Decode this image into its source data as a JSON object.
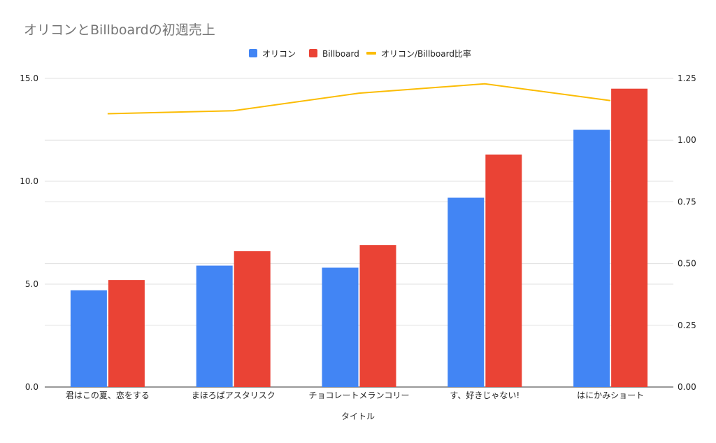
{
  "chart_data": {
    "type": "bar",
    "title": "オリコンとBillboardの初週売上",
    "xlabel": "タイトル",
    "categories": [
      "君はこの夏、恋をする",
      "まほろばアスタリスク",
      "チョコレートメランコリー",
      "す、好きじゃない!",
      "はにかみショート"
    ],
    "series": [
      {
        "name": "オリコン",
        "type": "bar",
        "axis": "left",
        "color": "#4285f4",
        "values": [
          4.7,
          5.9,
          5.8,
          9.2,
          12.5
        ]
      },
      {
        "name": "Billboard",
        "type": "bar",
        "axis": "left",
        "color": "#ea4335",
        "values": [
          5.2,
          6.6,
          6.9,
          11.3,
          14.5
        ]
      },
      {
        "name": "オリコン/Billboard比率",
        "type": "line",
        "axis": "right",
        "color": "#fbbc04",
        "values": [
          1.107,
          1.119,
          1.19,
          1.228,
          1.16
        ]
      }
    ],
    "left_axis": {
      "min": 0,
      "max": 15,
      "ticks": [
        "0.0",
        "5.0",
        "10.0",
        "15.0"
      ],
      "tick_values": [
        0,
        5,
        10,
        15
      ]
    },
    "right_axis": {
      "min": 0,
      "max": 1.25,
      "ticks": [
        "0.00",
        "0.25",
        "0.50",
        "0.75",
        "1.00",
        "1.25"
      ],
      "tick_values": [
        0,
        0.25,
        0.5,
        0.75,
        1,
        1.25
      ]
    },
    "grid": true,
    "legend_position": "top-center"
  }
}
